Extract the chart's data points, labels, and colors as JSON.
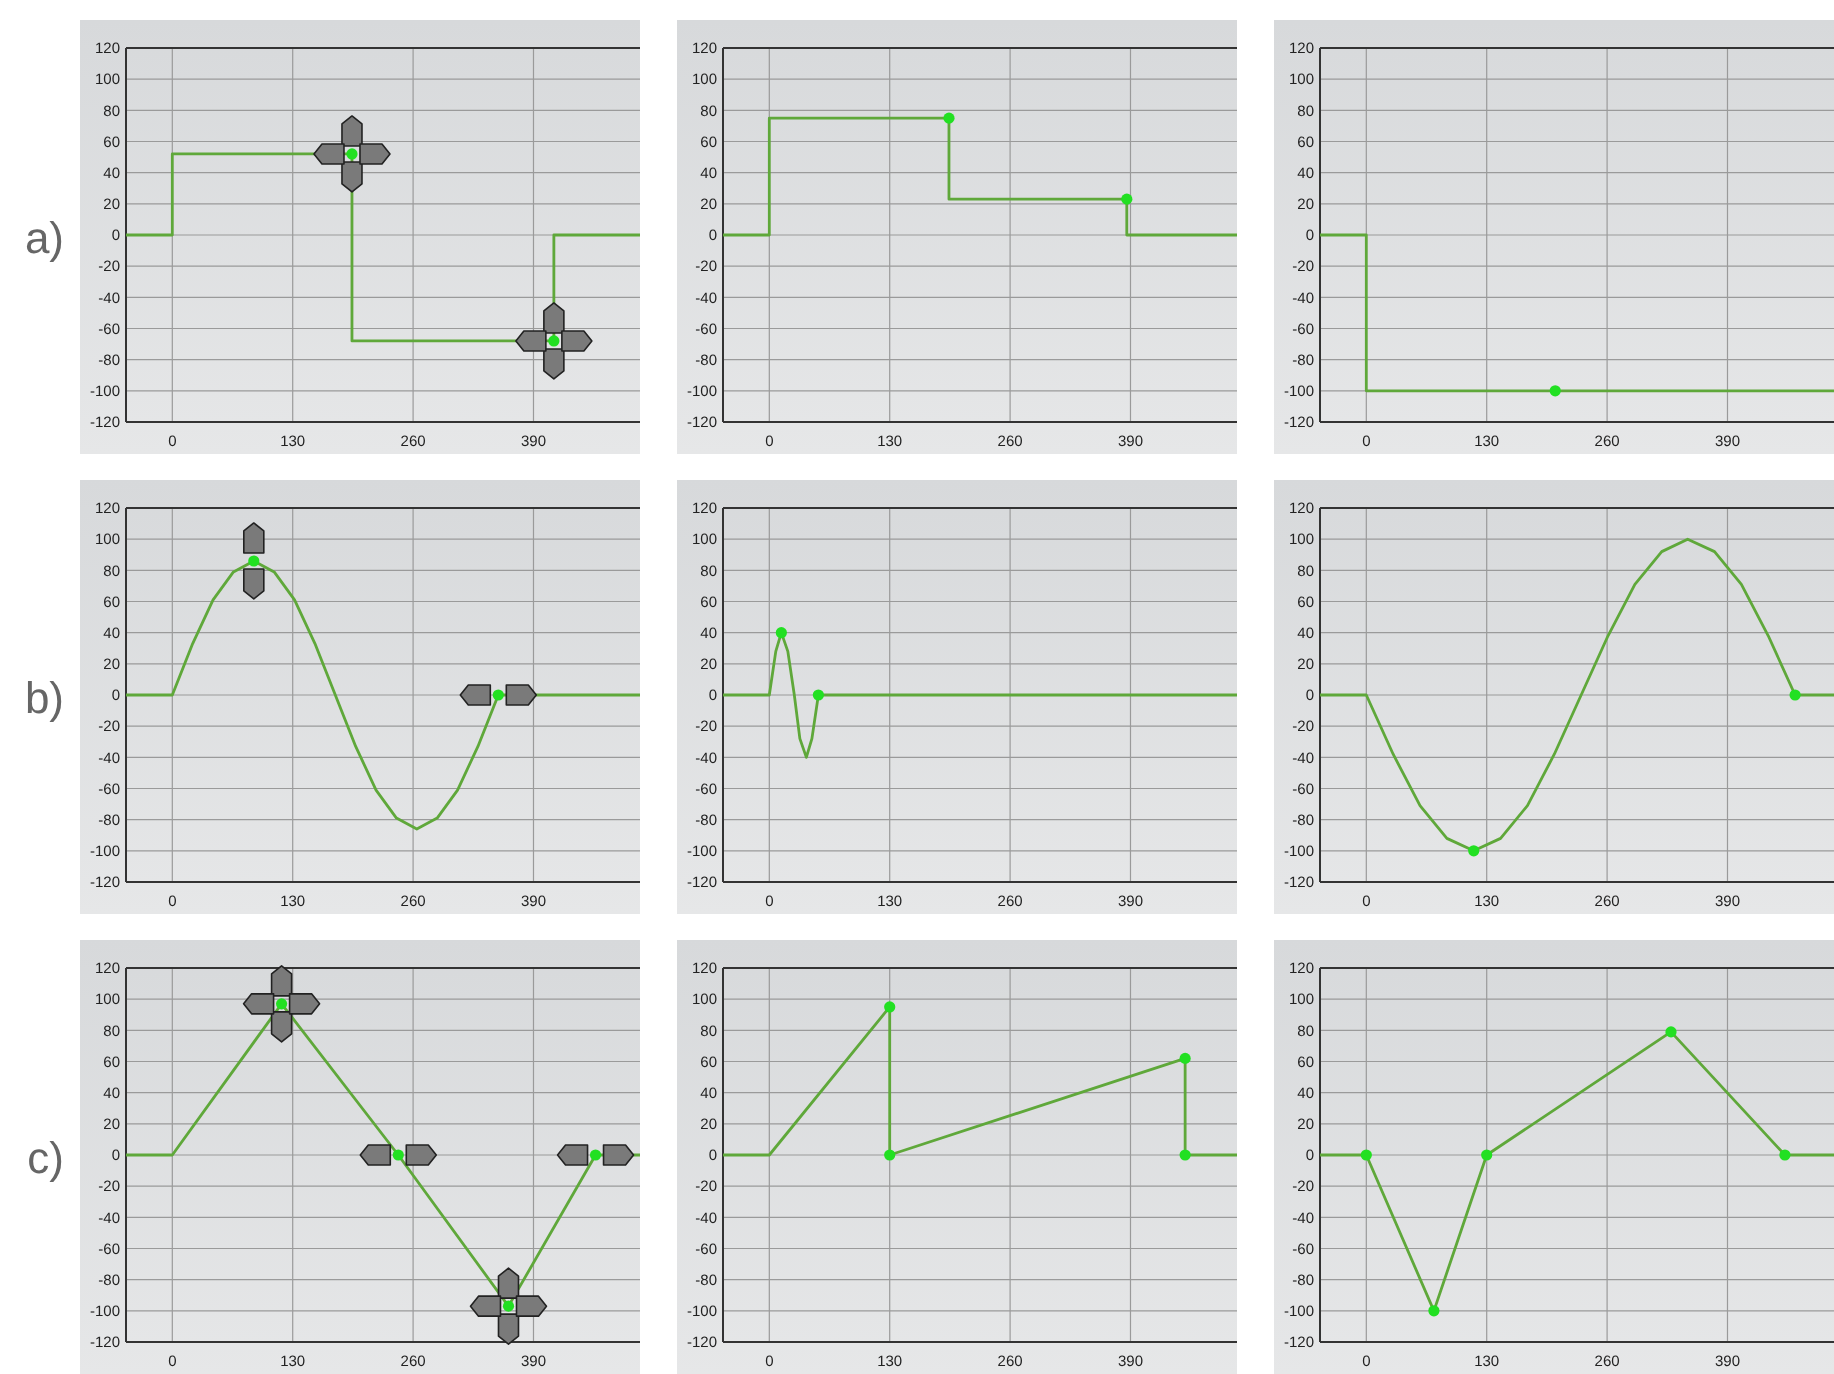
{
  "chart_data": [
    {
      "type": "step",
      "annotations": [
        "a)"
      ],
      "xlim": [
        -50,
        505
      ],
      "xticks": [
        0,
        130,
        260,
        390
      ],
      "ylim": [
        -120,
        120
      ],
      "yticks": [
        -120,
        -100,
        -80,
        -60,
        -40,
        -20,
        0,
        20,
        40,
        60,
        80,
        100,
        120
      ],
      "grid": true,
      "series": [
        {
          "color": "#5fa83a",
          "x": [
            -50,
            0,
            194,
            412,
            505
          ],
          "values": [
            0,
            52,
            -68,
            0,
            0
          ]
        },
        {
          "type": "scatter",
          "marker": "circle",
          "color": "#22e022",
          "x": [
            194,
            412
          ],
          "values": [
            52,
            -68
          ]
        }
      ]
    },
    {
      "type": "step",
      "xlim": [
        -50,
        505
      ],
      "xticks": [
        0,
        130,
        260,
        390
      ],
      "ylim": [
        -120,
        120
      ],
      "yticks": [
        -120,
        -100,
        -80,
        -60,
        -40,
        -20,
        0,
        20,
        40,
        60,
        80,
        100,
        120
      ],
      "grid": true,
      "series": [
        {
          "color": "#5fa83a",
          "x": [
            -50,
            0,
            194,
            386,
            505
          ],
          "values": [
            0,
            75,
            23,
            0,
            0
          ]
        },
        {
          "type": "scatter",
          "marker": "circle",
          "color": "#22e022",
          "x": [
            194,
            386
          ],
          "values": [
            75,
            23
          ]
        }
      ]
    },
    {
      "type": "step",
      "xlim": [
        -50,
        505
      ],
      "xticks": [
        0,
        130,
        260,
        390
      ],
      "ylim": [
        -120,
        120
      ],
      "yticks": [
        -120,
        -100,
        -80,
        -60,
        -40,
        -20,
        0,
        20,
        40,
        60,
        80,
        100,
        120
      ],
      "grid": true,
      "series": [
        {
          "color": "#5fa83a",
          "x": [
            -50,
            0,
            505
          ],
          "values": [
            0,
            -100,
            -100
          ]
        },
        {
          "type": "scatter",
          "marker": "circle",
          "color": "#22e022",
          "x": [
            204
          ],
          "values": [
            -100
          ]
        }
      ]
    },
    {
      "type": "line",
      "annotations": [
        "b)"
      ],
      "xlim": [
        -50,
        505
      ],
      "xticks": [
        0,
        130,
        260,
        390
      ],
      "ylim": [
        -120,
        120
      ],
      "yticks": [
        -120,
        -100,
        -80,
        -60,
        -40,
        -20,
        0,
        20,
        40,
        60,
        80,
        100,
        120
      ],
      "grid": true,
      "series": [
        {
          "color": "#5fa83a",
          "x": [
            -50,
            0,
            22,
            44,
            66,
            88,
            110,
            132,
            154,
            176,
            198,
            220,
            242,
            264,
            286,
            308,
            330,
            352,
            505
          ],
          "values": [
            0,
            0,
            33,
            61,
            79,
            86,
            79,
            61,
            33,
            0,
            -33,
            -61,
            -79,
            -86,
            -79,
            -61,
            -33,
            0,
            0
          ]
        },
        {
          "type": "scatter",
          "marker": "circle",
          "color": "#22e022",
          "x": [
            88,
            352
          ],
          "values": [
            86,
            0
          ]
        }
      ]
    },
    {
      "type": "line",
      "xlim": [
        -50,
        505
      ],
      "xticks": [
        0,
        130,
        260,
        390
      ],
      "ylim": [
        -120,
        120
      ],
      "yticks": [
        -120,
        -100,
        -80,
        -60,
        -40,
        -20,
        0,
        20,
        40,
        60,
        80,
        100,
        120
      ],
      "grid": true,
      "series": [
        {
          "color": "#5fa83a",
          "x": [
            -50,
            0,
            7,
            13,
            20,
            27,
            33,
            40,
            46,
            53,
            505
          ],
          "values": [
            0,
            0,
            28,
            40,
            28,
            0,
            -28,
            -40,
            -28,
            0,
            0
          ]
        },
        {
          "type": "scatter",
          "marker": "circle",
          "color": "#22e022",
          "x": [
            13,
            53
          ],
          "values": [
            40,
            0
          ]
        }
      ]
    },
    {
      "type": "line",
      "xlim": [
        -50,
        505
      ],
      "xticks": [
        0,
        130,
        260,
        390
      ],
      "ylim": [
        -120,
        120
      ],
      "yticks": [
        -120,
        -100,
        -80,
        -60,
        -40,
        -20,
        0,
        20,
        40,
        60,
        80,
        100,
        120
      ],
      "grid": true,
      "series": [
        {
          "color": "#5fa83a",
          "x": [
            -50,
            0,
            29,
            58,
            87,
            116,
            145,
            174,
            203,
            232,
            261,
            290,
            319,
            347,
            376,
            405,
            434,
            463,
            505
          ],
          "values": [
            0,
            0,
            -38,
            -71,
            -92,
            -100,
            -92,
            -71,
            -38,
            0,
            38,
            71,
            92,
            100,
            92,
            71,
            38,
            0,
            0
          ]
        },
        {
          "type": "scatter",
          "marker": "circle",
          "color": "#22e022",
          "x": [
            116,
            463
          ],
          "values": [
            -100,
            0
          ]
        }
      ]
    },
    {
      "type": "line",
      "annotations": [
        "c)"
      ],
      "xlim": [
        -50,
        505
      ],
      "xticks": [
        0,
        130,
        260,
        390
      ],
      "ylim": [
        -120,
        120
      ],
      "yticks": [
        -120,
        -100,
        -80,
        -60,
        -40,
        -20,
        0,
        20,
        40,
        60,
        80,
        100,
        120
      ],
      "grid": true,
      "series": [
        {
          "color": "#5fa83a",
          "x": [
            -50,
            0,
            118,
            244,
            363,
            457,
            505
          ],
          "values": [
            0,
            0,
            97,
            0,
            -97,
            0,
            0
          ]
        },
        {
          "type": "scatter",
          "marker": "circle",
          "color": "#22e022",
          "x": [
            118,
            244,
            363,
            457
          ],
          "values": [
            97,
            0,
            -97,
            0
          ]
        }
      ]
    },
    {
      "type": "line",
      "xlim": [
        -50,
        505
      ],
      "xticks": [
        0,
        130,
        260,
        390
      ],
      "ylim": [
        -120,
        120
      ],
      "yticks": [
        -120,
        -100,
        -80,
        -60,
        -40,
        -20,
        0,
        20,
        40,
        60,
        80,
        100,
        120
      ],
      "grid": true,
      "series": [
        {
          "color": "#5fa83a",
          "x": [
            -50,
            0,
            130,
            130,
            449,
            449,
            505
          ],
          "values": [
            0,
            0,
            95,
            0,
            62,
            0,
            0
          ]
        },
        {
          "type": "scatter",
          "marker": "circle",
          "color": "#22e022",
          "x": [
            130,
            130,
            449,
            449
          ],
          "values": [
            95,
            0,
            62,
            0
          ]
        }
      ]
    },
    {
      "type": "line",
      "xlim": [
        -50,
        505
      ],
      "xticks": [
        0,
        130,
        260,
        390
      ],
      "ylim": [
        -120,
        120
      ],
      "yticks": [
        -120,
        -100,
        -80,
        -60,
        -40,
        -20,
        0,
        20,
        40,
        60,
        80,
        100,
        120
      ],
      "grid": true,
      "series": [
        {
          "color": "#5fa83a",
          "x": [
            -50,
            0,
            73,
            130,
            329,
            452,
            505
          ],
          "values": [
            0,
            0,
            -100,
            0,
            79,
            0,
            0
          ]
        },
        {
          "type": "scatter",
          "marker": "circle",
          "color": "#22e022",
          "x": [
            0,
            73,
            130,
            329,
            452
          ],
          "values": [
            0,
            -100,
            0,
            79,
            0
          ]
        }
      ]
    }
  ]
}
